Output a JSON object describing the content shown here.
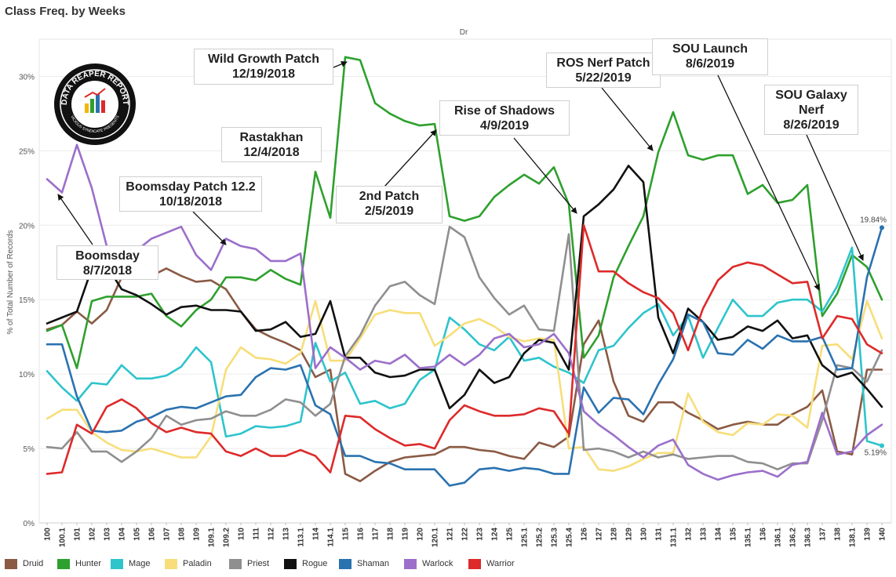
{
  "page": {
    "title": "Class Freq. by Weeks",
    "x_header": "Dr"
  },
  "colors": {
    "Druid": "#8a5a44",
    "Hunter": "#2ea02e",
    "Mage": "#2ec4cc",
    "Paladin": "#f7de7a",
    "Priest": "#8f8f8f",
    "Rogue": "#111111",
    "Shaman": "#2a72b0",
    "Warlock": "#9b6fca",
    "Warrior": "#dd2a2a"
  },
  "logo": {
    "text_top": "DATA REAPER REPORT",
    "text_bottom": "VICIOUS SYNDICATE PRESENTS"
  },
  "annotations": [
    {
      "id": "boomsday",
      "line1": "Boomsday",
      "line2": "8/7/2018"
    },
    {
      "id": "boomsday-patch",
      "line1": "Boomsday Patch 12.2",
      "line2": "10/18/2018"
    },
    {
      "id": "rastakhan",
      "line1": "Rastakhan",
      "line2": "12/4/2018"
    },
    {
      "id": "wild-growth",
      "line1": "Wild Growth Patch",
      "line2": "12/19/2018"
    },
    {
      "id": "second-patch",
      "line1": "2nd Patch",
      "line2": "2/5/2019"
    },
    {
      "id": "rise-of-shadows",
      "line1": "Rise of Shadows",
      "line2": "4/9/2019"
    },
    {
      "id": "ros-nerf",
      "line1": "ROS Nerf Patch",
      "line2": "5/22/2019"
    },
    {
      "id": "sou-launch",
      "line1": "SOU Launch",
      "line2": "8/6/2019"
    },
    {
      "id": "sou-galaxy",
      "line1": "SOU Galaxy",
      "line2": "Nerf",
      "line3": "8/26/2019"
    }
  ],
  "chart_data": {
    "type": "line",
    "title": "Class Freq. by Weeks",
    "xlabel": "Dr",
    "ylabel": "% of Total Number of Records",
    "ylim": [
      0,
      32.5
    ],
    "yticks": [
      "0%",
      "5%",
      "10%",
      "15%",
      "20%",
      "25%",
      "30%"
    ],
    "grid": true,
    "legend_position": "bottom",
    "end_labels": [
      {
        "series": "Shaman",
        "text": "19.84%"
      },
      {
        "series": "Mage",
        "text": "5.19%"
      }
    ],
    "categories": [
      "100",
      "100.1",
      "101",
      "102",
      "103",
      "104",
      "105",
      "106",
      "107",
      "108",
      "109",
      "109.1",
      "109.2",
      "110",
      "111",
      "112",
      "113",
      "113.1",
      "114",
      "114.1",
      "115",
      "116",
      "117",
      "118",
      "119",
      "120",
      "120.1",
      "121",
      "122",
      "123",
      "124",
      "125",
      "125.1",
      "125.2",
      "125.3",
      "125.4",
      "126",
      "127",
      "128",
      "129",
      "130",
      "131",
      "131.1",
      "132",
      "133",
      "134",
      "135",
      "135.1",
      "136",
      "136.1",
      "136.2",
      "136.3",
      "137",
      "138",
      "138.1",
      "139",
      "140"
    ],
    "series": [
      {
        "name": "Druid",
        "values": [
          13,
          13.3,
          14.2,
          13.4,
          14.3,
          16.5,
          17.3,
          16.6,
          17.1,
          16.6,
          16.2,
          16.3,
          15.7,
          14.2,
          13,
          12.5,
          12.1,
          11.6,
          9.8,
          10.3,
          3.3,
          2.8,
          3.5,
          4.1,
          4.4,
          4.5,
          4.6,
          5.1,
          5.1,
          4.9,
          4.8,
          4.5,
          4.3,
          5.4,
          5.1,
          5.8,
          12,
          13.6,
          9.5,
          7.2,
          6.8,
          8.1,
          8.1,
          7.4,
          6.9,
          6.3,
          6.6,
          6.8,
          6.6,
          6.6,
          7.3,
          7.8,
          8.9,
          4.8,
          4.6,
          10.3,
          10.3
        ]
      },
      {
        "name": "Hunter",
        "values": [
          12.9,
          13.3,
          10.4,
          14.9,
          15.2,
          15.2,
          15.2,
          15.4,
          13.9,
          13.2,
          14.3,
          15,
          16.5,
          16.5,
          16.3,
          17,
          16.4,
          16,
          23.6,
          20.5,
          31.3,
          31.1,
          28.2,
          27.5,
          27,
          26.7,
          26.8,
          20.6,
          20.3,
          20.6,
          21.9,
          22.7,
          23.4,
          22.8,
          23.9,
          21.4,
          11.1,
          12.6,
          16.5,
          18.6,
          20.6,
          24.9,
          27.6,
          24.7,
          24.4,
          24.7,
          24.7,
          22.1,
          22.7,
          21.5,
          21.7,
          22.7,
          13.9,
          15.4,
          18,
          17.2,
          15
        ]
      },
      {
        "name": "Mage",
        "values": [
          10.2,
          9.1,
          8.2,
          9.4,
          9.3,
          10.6,
          9.7,
          9.7,
          9.9,
          10.5,
          11.8,
          10.8,
          5.8,
          6,
          6.5,
          6.4,
          6.5,
          6.8,
          12.1,
          9.5,
          10.1,
          8,
          8.2,
          7.7,
          8,
          9.6,
          10.3,
          13.8,
          13,
          12,
          11.6,
          12.5,
          10.9,
          11.1,
          10.5,
          10.1,
          9.4,
          11.6,
          11.9,
          13.1,
          14.1,
          14.7,
          12.6,
          13.9,
          11.1,
          13.1,
          15,
          13.9,
          13.9,
          14.8,
          15,
          15,
          14.2,
          15.9,
          18.5,
          5.5,
          5.19
        ]
      },
      {
        "name": "Paladin",
        "values": [
          7,
          7.6,
          7.6,
          6.1,
          5.4,
          4.9,
          4.8,
          5,
          4.7,
          4.4,
          4.4,
          5.8,
          10.3,
          11.8,
          11.1,
          11,
          10.7,
          11.4,
          14.9,
          10.9,
          10.9,
          12.4,
          14,
          14.3,
          14.1,
          14.1,
          11.9,
          12.6,
          13.4,
          13.7,
          13.2,
          12.5,
          12.2,
          12.4,
          12.3,
          5,
          5.1,
          3.6,
          3.5,
          3.8,
          4.3,
          4.7,
          4.7,
          8.7,
          6.8,
          6.1,
          5.9,
          6.7,
          6.6,
          7.3,
          7.2,
          6.4,
          11.9,
          12,
          11,
          14.9,
          12.4
        ]
      },
      {
        "name": "Priest",
        "values": [
          5.1,
          5,
          6.1,
          4.8,
          4.8,
          4.1,
          4.8,
          5.7,
          7.2,
          6.6,
          6.9,
          7,
          7.5,
          7.2,
          7.2,
          7.6,
          8.3,
          8.1,
          7.2,
          8,
          11.2,
          12.6,
          14.6,
          15.9,
          16.2,
          15.3,
          14.7,
          19.9,
          19.2,
          16.5,
          15.1,
          14,
          14.6,
          13,
          12.9,
          19.4,
          4.9,
          5,
          4.8,
          4.4,
          4.8,
          4.4,
          4.6,
          4.3,
          4.4,
          4.5,
          4.5,
          4.1,
          4,
          3.6,
          4,
          4,
          6.9,
          10.6,
          10.4,
          9.5,
          11.6
        ]
      },
      {
        "name": "Rogue",
        "values": [
          13.4,
          13.8,
          14.2,
          17.1,
          17.3,
          15.7,
          15.3,
          14.7,
          14,
          14.5,
          14.6,
          14.3,
          14.3,
          14.2,
          12.9,
          13,
          13.5,
          12.5,
          12.7,
          14.9,
          11.1,
          11.1,
          10.1,
          9.8,
          9.9,
          10.3,
          10.3,
          7.7,
          8.6,
          10.3,
          9.4,
          9.8,
          11.4,
          12.3,
          12.1,
          10.3,
          20.6,
          21.4,
          22.4,
          24,
          22.9,
          13.8,
          11.4,
          14.4,
          13.5,
          12.3,
          12.5,
          13.2,
          12.9,
          13.6,
          12.4,
          12.6,
          10.6,
          9.8,
          10.1,
          9,
          7.8
        ]
      },
      {
        "name": "Shaman",
        "values": [
          12,
          12,
          8.5,
          6.2,
          6.1,
          6.2,
          6.8,
          7.1,
          7.6,
          7.8,
          7.7,
          8.1,
          8.5,
          8.6,
          9.8,
          10.4,
          10.3,
          10.6,
          7.9,
          7.3,
          4.5,
          4.5,
          4.1,
          4,
          3.6,
          3.6,
          3.6,
          2.5,
          2.7,
          3.6,
          3.7,
          3.5,
          3.7,
          3.6,
          3.3,
          3.3,
          9.1,
          7.4,
          8.4,
          8.3,
          7.3,
          9.3,
          11,
          14,
          13.5,
          11.4,
          11.3,
          12.3,
          11.7,
          12.6,
          12.2,
          12.2,
          12.5,
          10.3,
          10.4,
          16.5,
          19.84
        ]
      },
      {
        "name": "Warlock",
        "values": [
          23.1,
          22.2,
          25.4,
          22.5,
          18.6,
          18.2,
          18.3,
          19.1,
          19.5,
          19.9,
          18,
          17,
          19.1,
          18.6,
          18.4,
          17.6,
          17.6,
          18.1,
          10.4,
          11.8,
          11.1,
          10.3,
          10.9,
          10.7,
          11.3,
          10.4,
          10.5,
          11.3,
          10.6,
          11.3,
          12.4,
          12.7,
          11.8,
          12,
          12.7,
          11.4,
          7.5,
          6.6,
          5.9,
          5.1,
          4.4,
          5.2,
          5.6,
          3.9,
          3.3,
          2.9,
          3.2,
          3.4,
          3.5,
          3.1,
          3.9,
          4.1,
          7.4,
          4.6,
          4.8,
          5.9,
          6.6
        ]
      },
      {
        "name": "Warrior",
        "values": [
          3.3,
          3.4,
          6.6,
          6,
          7.8,
          8.3,
          7.7,
          6.7,
          6.1,
          6.4,
          6.1,
          6,
          4.8,
          4.5,
          5,
          4.5,
          4.5,
          4.9,
          4.5,
          3.4,
          7.2,
          7.1,
          6.3,
          5.7,
          5.2,
          5.3,
          5,
          6.9,
          7.9,
          7.5,
          7.2,
          7.2,
          7.3,
          7.7,
          7.5,
          6,
          20,
          16.9,
          16.9,
          16.1,
          15.5,
          15.1,
          14.1,
          11.6,
          14.4,
          16.3,
          17.2,
          17.5,
          17.3,
          16.7,
          16.1,
          16.2,
          12.4,
          13.9,
          13.7,
          12,
          11.4
        ]
      }
    ]
  }
}
